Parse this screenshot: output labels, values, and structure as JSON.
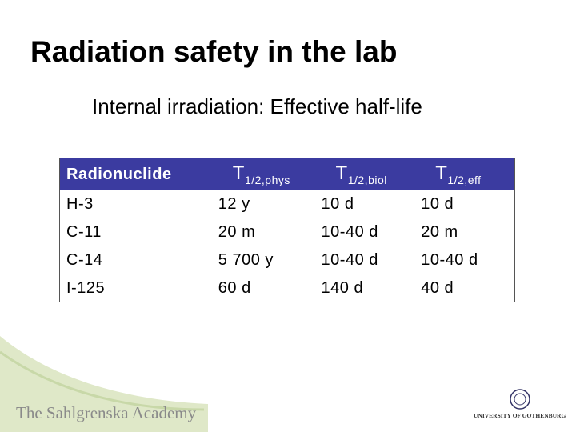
{
  "header": {
    "title": "Radiation safety in the lab",
    "subtitle": "Internal irradiation: Effective half-life"
  },
  "table": {
    "columns": [
      {
        "main": "Radionuclide"
      },
      {
        "main": "T",
        "sub": "1/2,phys"
      },
      {
        "main": "T",
        "sub": "1/2,biol"
      },
      {
        "main": "T",
        "sub": "1/2,eff"
      }
    ],
    "rows": [
      [
        "H-3",
        "12 y",
        "10 d",
        "10 d"
      ],
      [
        "C-11",
        "20 m",
        "10-40 d",
        "20 m"
      ],
      [
        "C-14",
        "5 700 y",
        "10-40 d",
        "10-40 d"
      ],
      [
        "I-125",
        "60 d",
        "140 d",
        "40 d"
      ]
    ]
  },
  "footer": {
    "left": "The Sahlgrenska Academy",
    "right": "UNIVERSITY OF GOTHENBURG"
  }
}
